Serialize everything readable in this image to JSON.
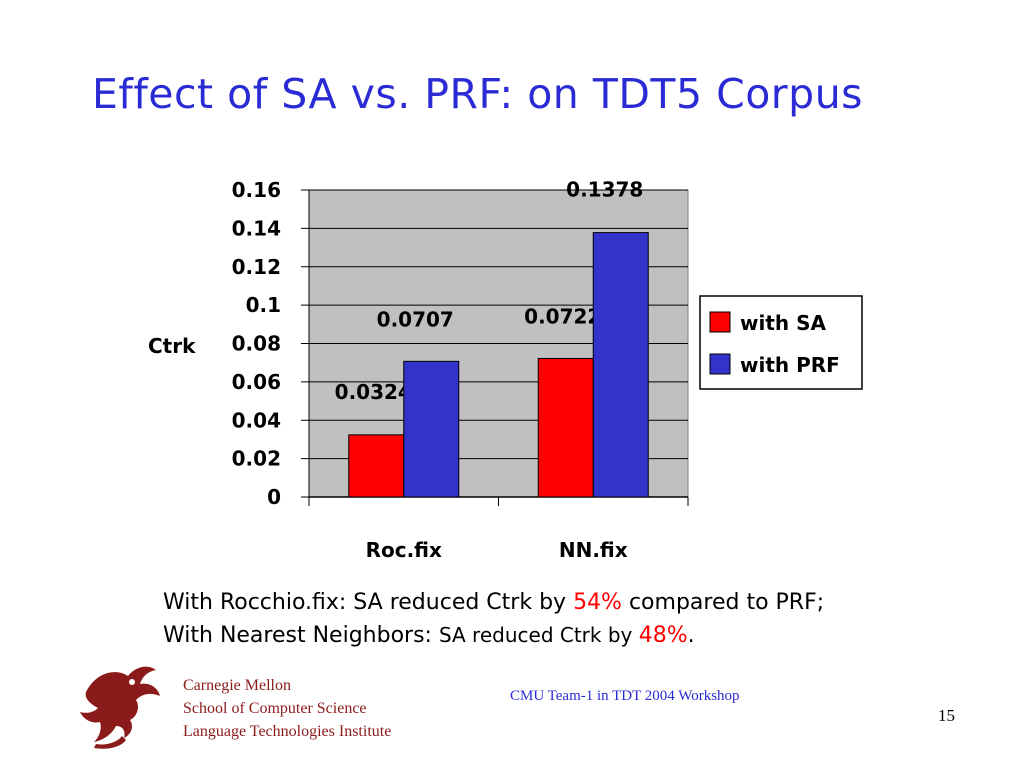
{
  "slide": {
    "title": "Effect of SA vs. PRF: on TDT5 Corpus",
    "page_number": "15"
  },
  "notes": {
    "line1_prefix": "With Rocchio.fix: SA reduced Ctrk by ",
    "line1_highlight": "54%",
    "line1_suffix": " compared to PRF;",
    "line2_prefix": "With Nearest Neighbors: ",
    "line2_mid": "SA reduced Ctrk by ",
    "line2_highlight": "48%",
    "line2_suffix": "."
  },
  "footer": {
    "org_line1": "Carnegie Mellon",
    "org_line2": "School of Computer Science",
    "org_line3": "Language Technologies Institute",
    "workshop": "CMU Team-1 in TDT 2004 Workshop"
  },
  "colors": {
    "title": "#2b2bd6",
    "with_sa": "#ff0000",
    "with_prf": "#3333cc",
    "plot_bg": "#c0c0c0",
    "highlight": "#ff0000",
    "org_text": "#8b1a1a"
  },
  "chart_data": {
    "type": "bar",
    "categories": [
      "Roc.fix",
      "NN.fix"
    ],
    "series": [
      {
        "name": "with SA",
        "values": [
          0.0324,
          0.0722
        ],
        "labels": [
          "0.0324",
          "0.0722"
        ]
      },
      {
        "name": "with PRF",
        "values": [
          0.0707,
          0.1378
        ],
        "labels": [
          "0.0707",
          "0.1378"
        ]
      }
    ],
    "xlabel": "",
    "ylabel": "Ctrk",
    "ylim": [
      0,
      0.16
    ],
    "yticks": [
      "0",
      "0.02",
      "0.04",
      "0.06",
      "0.08",
      "0.1",
      "0.12",
      "0.14",
      "0.16"
    ],
    "grid": true,
    "legend": "right"
  }
}
